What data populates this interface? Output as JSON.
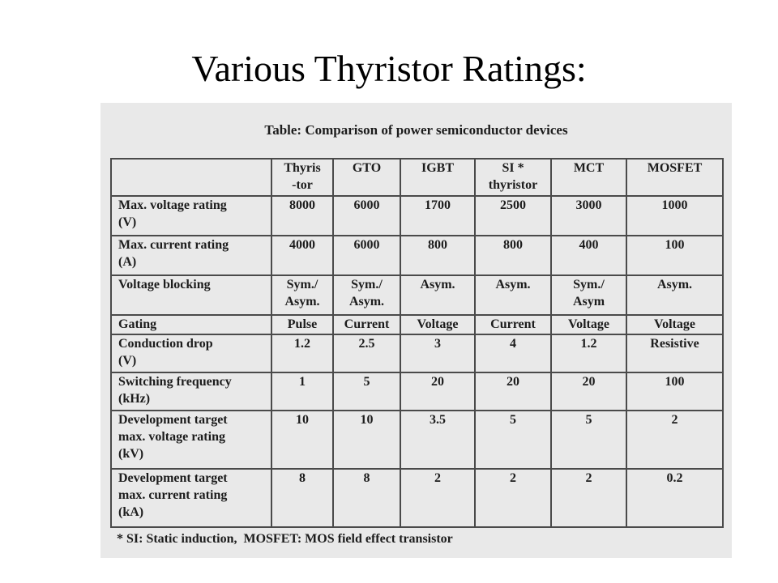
{
  "slide": {
    "title": "Various Thyristor Ratings:"
  },
  "table": {
    "caption": "Table: Comparison of power semiconductor devices",
    "columns": [
      "",
      "Thyris\n-tor",
      "GTO",
      "IGBT",
      "SI *\nthyristor",
      "MCT",
      "MOSFET"
    ],
    "rows": [
      {
        "label": "Max. voltage rating\n(V)",
        "values": [
          "8000",
          "6000",
          "1700",
          "2500",
          "3000",
          "1000"
        ]
      },
      {
        "label": "Max. current rating\n(A)",
        "values": [
          "4000",
          "6000",
          "800",
          "800",
          "400",
          "100"
        ]
      },
      {
        "label": "Voltage blocking",
        "values": [
          "Sym./\nAsym.",
          "Sym./\nAsym.",
          "Asym.",
          "Asym.",
          "Sym./\nAsym",
          "Asym."
        ]
      },
      {
        "label": "Gating",
        "values": [
          "Pulse",
          "Current",
          "Voltage",
          "Current",
          "Voltage",
          "Voltage"
        ]
      },
      {
        "label": "Conduction drop\n(V)",
        "values": [
          "1.2",
          "2.5",
          "3",
          "4",
          "1.2",
          "Resistive"
        ]
      },
      {
        "label": "Switching frequency\n(kHz)",
        "values": [
          "1",
          "5",
          "20",
          "20",
          "20",
          "100"
        ]
      },
      {
        "label": "Development target\nmax. voltage rating\n(kV)",
        "values": [
          "10",
          "10",
          "3.5",
          "5",
          "5",
          "2"
        ]
      },
      {
        "label": "Development target\nmax. current rating\n(kA)",
        "values": [
          "8",
          "8",
          "2",
          "2",
          "2",
          "0.2"
        ]
      }
    ],
    "footnote": "* SI: Static induction,  MOSFET: MOS field effect transistor"
  }
}
